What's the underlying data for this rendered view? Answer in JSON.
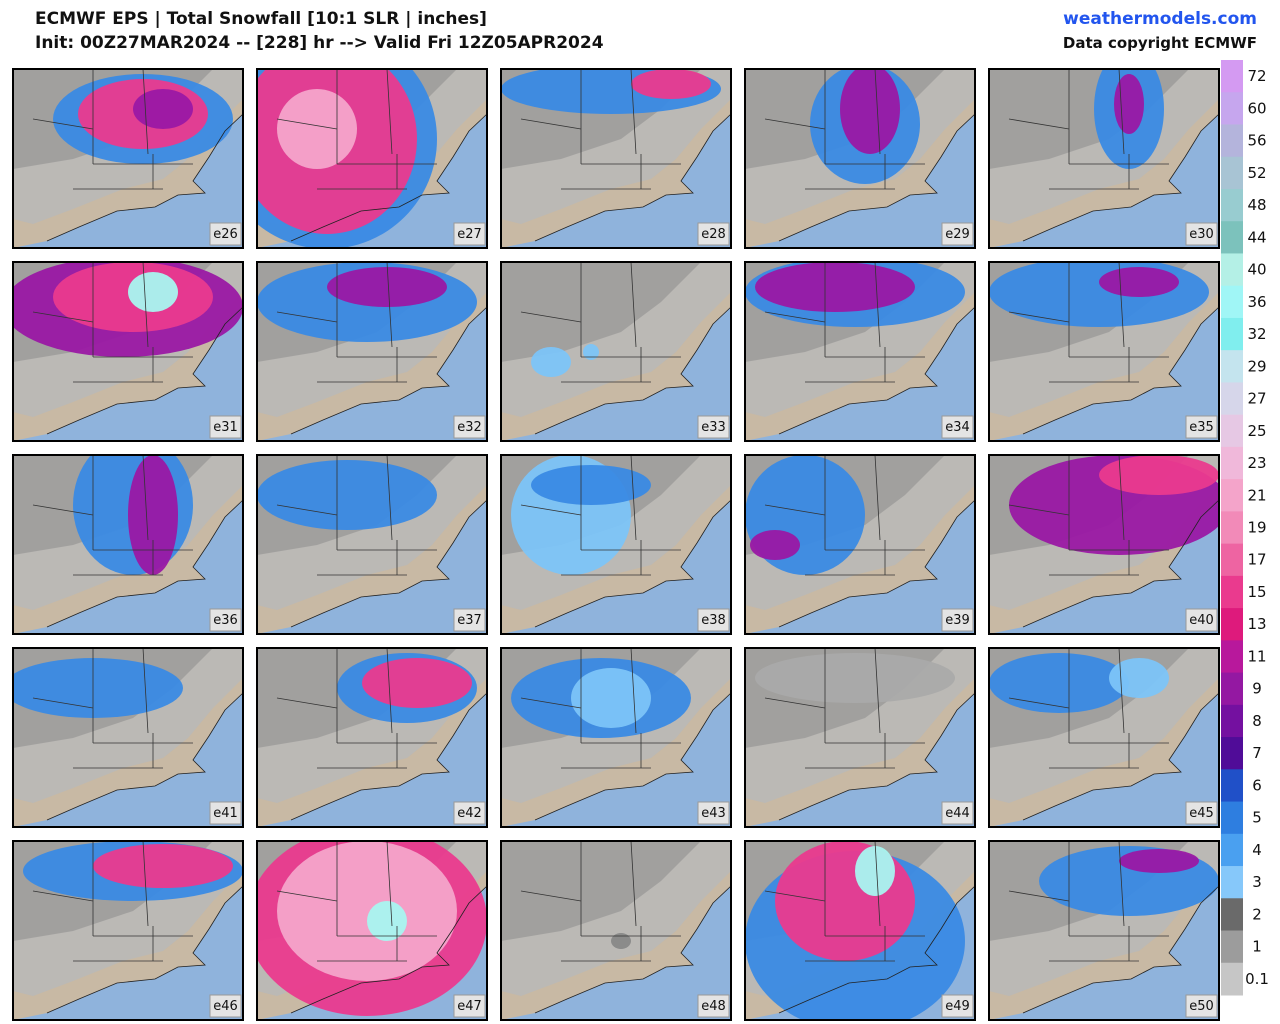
{
  "header": {
    "title": "ECMWF EPS | Total Snowfall [10:1 SLR | inches]",
    "subtitle": "Init: 00Z27MAR2024 -- [228] hr --> Valid Fri 12Z05APR2024",
    "site": "weathermodels.com",
    "copyright": "Data copyright ECMWF"
  },
  "panels": [
    "e26",
    "e27",
    "e28",
    "e29",
    "e30",
    "e31",
    "e32",
    "e33",
    "e34",
    "e35",
    "e36",
    "e37",
    "e38",
    "e39",
    "e40",
    "e41",
    "e42",
    "e43",
    "e44",
    "e45",
    "e46",
    "e47",
    "e48",
    "e49",
    "e50"
  ],
  "colorbar": [
    {
      "label": "72",
      "color": "#d49af2"
    },
    {
      "label": "60",
      "color": "#c6a6ee"
    },
    {
      "label": "56",
      "color": "#b4b4dc"
    },
    {
      "label": "52",
      "color": "#a8c4d4"
    },
    {
      "label": "48",
      "color": "#98ccd0"
    },
    {
      "label": "44",
      "color": "#7cc2bc"
    },
    {
      "label": "40",
      "color": "#b4f0e6"
    },
    {
      "label": "36",
      "color": "#a0f6f6"
    },
    {
      "label": "32",
      "color": "#80eeee"
    },
    {
      "label": "29",
      "color": "#c4e4ee"
    },
    {
      "label": "27",
      "color": "#d6d6ea"
    },
    {
      "label": "25",
      "color": "#e6c8e4"
    },
    {
      "label": "23",
      "color": "#f0b8da"
    },
    {
      "label": "21",
      "color": "#f4a4ca"
    },
    {
      "label": "19",
      "color": "#f28ab8"
    },
    {
      "label": "17",
      "color": "#ee64a2"
    },
    {
      "label": "15",
      "color": "#ea3a8e"
    },
    {
      "label": "13",
      "color": "#de1a7c"
    },
    {
      "label": "11",
      "color": "#b8189c"
    },
    {
      "label": "9",
      "color": "#9418a2"
    },
    {
      "label": "8",
      "color": "#7410a0"
    },
    {
      "label": "7",
      "color": "#500c98"
    },
    {
      "label": "6",
      "color": "#2050c8"
    },
    {
      "label": "5",
      "color": "#2e7ee0"
    },
    {
      "label": "4",
      "color": "#4aa0f0"
    },
    {
      "label": "3",
      "color": "#86c8fa"
    },
    {
      "label": "2",
      "color": "#6a6a6a"
    },
    {
      "label": "1",
      "color": "#9c9c9c"
    },
    {
      "label": "0.1",
      "color": "#c6c6c6"
    }
  ]
}
